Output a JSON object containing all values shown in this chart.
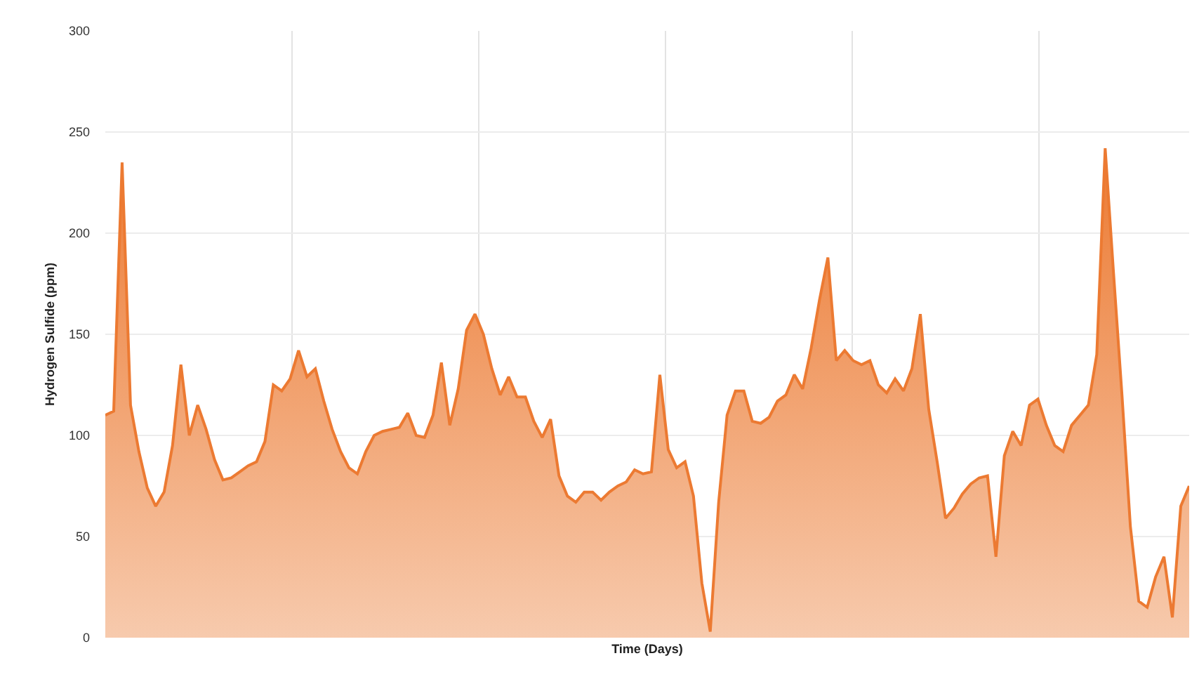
{
  "chart_data": {
    "type": "area",
    "xlabel": "Time (Days)",
    "ylabel": "Hydrogen Sulfide (ppm)",
    "categories": [
      null,
      null,
      null,
      null,
      null,
      null,
      null,
      null,
      null,
      null,
      null,
      null,
      null,
      null,
      null,
      null,
      null,
      null,
      null,
      null,
      null,
      null,
      null,
      null,
      null,
      null,
      null,
      null,
      null,
      null,
      null,
      null,
      null,
      null,
      null,
      null,
      null,
      null,
      null,
      null,
      null,
      null,
      null,
      null,
      null,
      null,
      null,
      null,
      null,
      null,
      null,
      null,
      null,
      null,
      null,
      null,
      null,
      null,
      null,
      null,
      null,
      null,
      null,
      null,
      null,
      null,
      null,
      null,
      null,
      null,
      null,
      null,
      null,
      null,
      null,
      null,
      null,
      null,
      null,
      null,
      null,
      null,
      null,
      null,
      null,
      null,
      null,
      null,
      null,
      null,
      null,
      null,
      null,
      null,
      null,
      null,
      null,
      null,
      null,
      null,
      null,
      null,
      null,
      null,
      null,
      null,
      null,
      null,
      null,
      null,
      null,
      null,
      null,
      null,
      null,
      null,
      null,
      null,
      null,
      null,
      null,
      null,
      null,
      null,
      null,
      null,
      null,
      null,
      null,
      null
    ],
    "series": [
      {
        "color": "#ec7a32",
        "values": [
          110,
          112,
          235,
          115,
          92,
          74,
          65,
          72,
          95,
          135,
          100,
          115,
          103,
          88,
          78,
          79,
          82,
          85,
          87,
          97,
          125,
          122,
          128,
          142,
          129,
          133,
          117,
          103,
          92,
          84,
          81,
          92,
          100,
          102,
          103,
          104,
          111,
          100,
          99,
          110,
          136,
          105,
          123,
          152,
          160,
          150,
          133,
          120,
          129,
          119,
          119,
          107,
          99,
          108,
          80,
          70,
          67,
          72,
          72,
          68,
          72,
          75,
          77,
          83,
          81,
          82,
          130,
          93,
          84,
          87,
          70,
          27,
          3,
          67,
          110,
          122,
          122,
          107,
          106,
          109,
          117,
          120,
          130,
          123,
          143,
          167,
          188,
          137,
          142,
          137,
          135,
          137,
          125,
          121,
          128,
          122,
          133,
          160,
          113,
          87,
          59,
          64,
          71,
          76,
          79,
          80,
          40,
          90,
          102,
          95,
          115,
          118,
          105,
          95,
          92,
          105,
          110,
          115,
          140,
          242,
          180,
          120,
          55,
          18,
          15,
          30,
          40,
          10,
          65,
          75
        ]
      }
    ],
    "ylim": [
      0,
      300
    ],
    "yticks": [
      0,
      50,
      100,
      150,
      200,
      250,
      300
    ],
    "grid": true,
    "legend": false,
    "tick_labels": "y"
  }
}
